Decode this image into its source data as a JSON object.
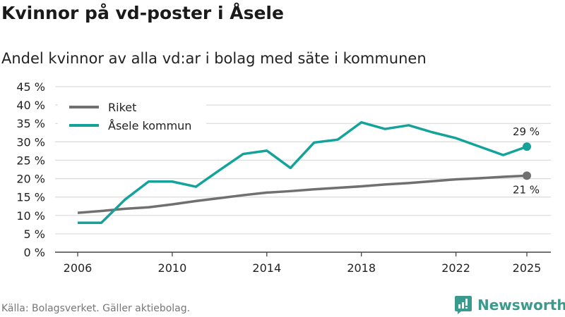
{
  "header": {
    "title": "Kvinnor på vd-poster i Åsele",
    "subtitle": "Andel kvinnor av alla vd:ar i bolag med säte i kommunen"
  },
  "footer": {
    "source": "Källa: Bolagsverket. Gäller aktiebolag.",
    "brand": "Newsworthy"
  },
  "colors": {
    "riket": "#707070",
    "asele": "#14a39a",
    "grid": "#dddddd",
    "brand": "#3a9a8e"
  },
  "chart_data": {
    "type": "line",
    "title": "Kvinnor på vd-poster i Åsele",
    "xlabel": "",
    "ylabel": "",
    "xlim": [
      2006,
      2025
    ],
    "ylim": [
      0,
      45
    ],
    "yticks": [
      0,
      5,
      10,
      15,
      20,
      25,
      30,
      35,
      40,
      45
    ],
    "ytick_labels": [
      "0 %",
      "5 %",
      "10 %",
      "15 %",
      "20 %",
      "25 %",
      "30 %",
      "35 %",
      "40 %",
      "45 %"
    ],
    "xticks": [
      2006,
      2010,
      2014,
      2018,
      2022,
      2025
    ],
    "xtick_labels": [
      "2006",
      "2010",
      "2014",
      "2018",
      "2022",
      "2025"
    ],
    "grid": true,
    "legend": "top-left",
    "x": [
      2006,
      2007,
      2008,
      2009,
      2010,
      2011,
      2012,
      2013,
      2014,
      2015,
      2016,
      2017,
      2018,
      2019,
      2020,
      2021,
      2022,
      2023,
      2024,
      2025
    ],
    "series": [
      {
        "name": "Riket",
        "color": "#707070",
        "end_label": "21 %",
        "values": [
          10.7,
          11.2,
          11.8,
          12.2,
          13.0,
          13.9,
          14.7,
          15.5,
          16.2,
          16.6,
          17.1,
          17.5,
          17.9,
          18.4,
          18.8,
          19.3,
          19.8,
          20.1,
          20.5,
          20.8
        ]
      },
      {
        "name": "Åsele kommun",
        "color": "#14a39a",
        "end_label": "29 %",
        "values": [
          8.0,
          8.0,
          14.3,
          19.2,
          19.2,
          17.8,
          22.3,
          26.7,
          27.6,
          22.9,
          29.8,
          30.6,
          35.3,
          33.5,
          34.5,
          32.6,
          31.0,
          28.7,
          26.4,
          28.7
        ]
      }
    ]
  }
}
